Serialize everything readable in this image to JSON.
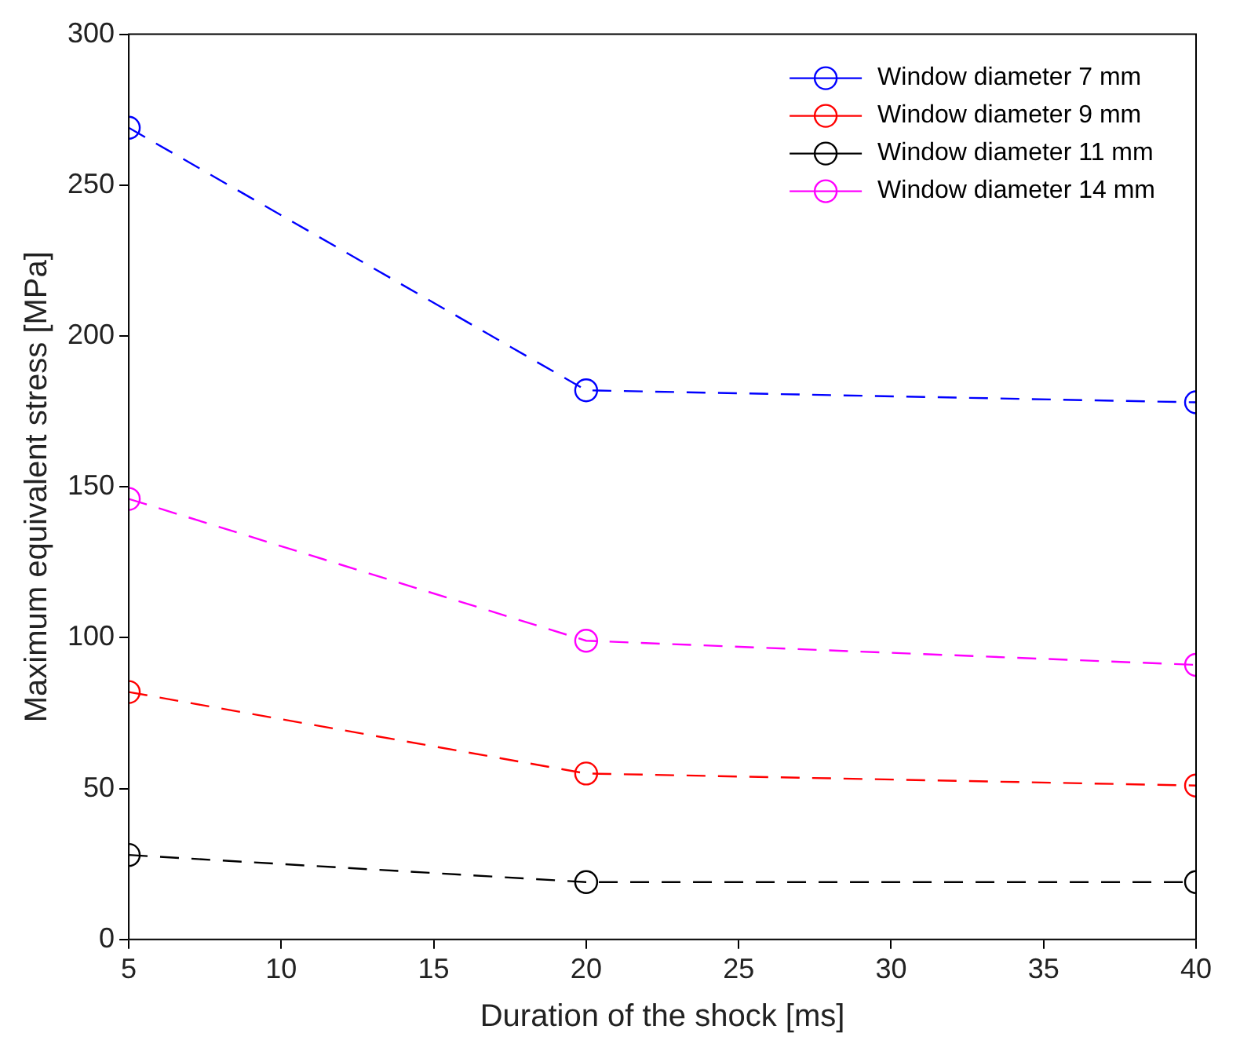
{
  "chart_data": {
    "type": "line",
    "xlabel": "Duration of the shock [ms]",
    "ylabel": "Maximum equivalent stress [MPa]",
    "x": [
      5,
      20,
      40
    ],
    "series": [
      {
        "name": "Window diameter 7 mm",
        "color": "#0000ff",
        "values": [
          269,
          182,
          178
        ]
      },
      {
        "name": "Window diameter 9 mm",
        "color": "#ff0000",
        "values": [
          82,
          55,
          51
        ]
      },
      {
        "name": "Window diameter 11 mm",
        "color": "#000000",
        "values": [
          28,
          19,
          19
        ]
      },
      {
        "name": "Window diameter 14 mm",
        "color": "#ff00ff",
        "values": [
          146,
          99,
          91
        ]
      }
    ],
    "xlim": [
      5,
      40
    ],
    "xticks": [
      5,
      10,
      15,
      20,
      25,
      30,
      35,
      40
    ],
    "ylim": [
      0,
      300
    ],
    "yticks": [
      0,
      50,
      100,
      150,
      200,
      250,
      300
    ],
    "grid": false,
    "legend": "top right",
    "marker": "circle",
    "line_style": "dashed"
  }
}
